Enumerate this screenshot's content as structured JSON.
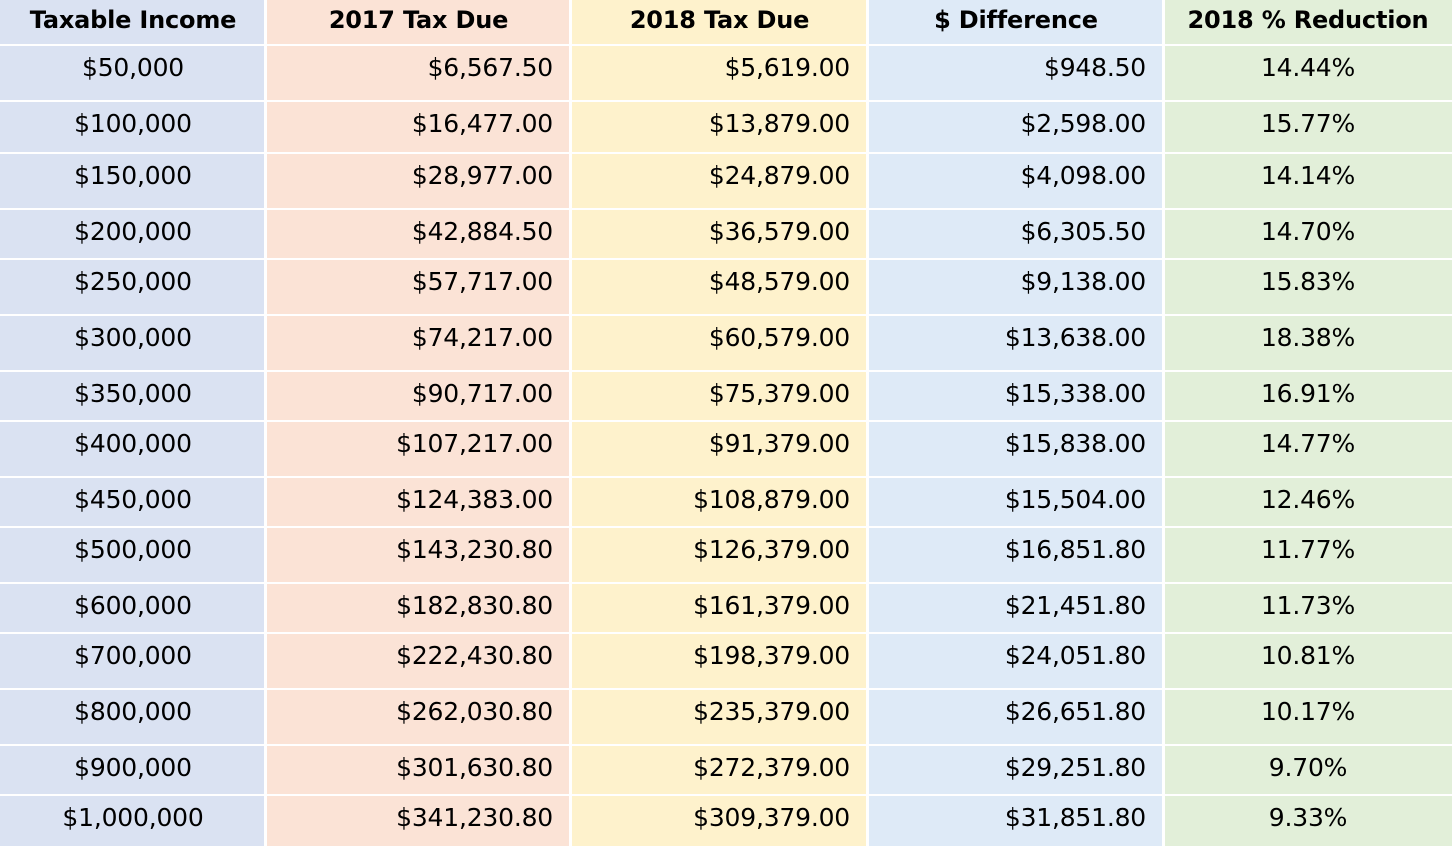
{
  "chart_data": {
    "type": "table",
    "columns": [
      {
        "header": "Taxable Income",
        "bg": "#dae2f2",
        "align": "center"
      },
      {
        "header": "2017 Tax Due",
        "bg": "#fbe3d6",
        "align": "right"
      },
      {
        "header": "2018 Tax Due",
        "bg": "#fef2cc",
        "align": "right"
      },
      {
        "header": "$ Difference",
        "bg": "#deeaf7",
        "align": "right"
      },
      {
        "header": "2018 % Reduction",
        "bg": "#e2efd9",
        "align": "center"
      }
    ],
    "rows": [
      [
        "$50,000",
        "$6,567.50",
        "$5,619.00",
        "$948.50",
        "14.44%"
      ],
      [
        "$100,000",
        "$16,477.00",
        "$13,879.00",
        "$2,598.00",
        "15.77%"
      ],
      [
        "$150,000",
        "$28,977.00",
        "$24,879.00",
        "$4,098.00",
        "14.14%"
      ],
      [
        "$200,000",
        "$42,884.50",
        "$36,579.00",
        "$6,305.50",
        "14.70%"
      ],
      [
        "$250,000",
        "$57,717.00",
        "$48,579.00",
        "$9,138.00",
        "15.83%"
      ],
      [
        "$300,000",
        "$74,217.00",
        "$60,579.00",
        "$13,638.00",
        "18.38%"
      ],
      [
        "$350,000",
        "$90,717.00",
        "$75,379.00",
        "$15,338.00",
        "16.91%"
      ],
      [
        "$400,000",
        "$107,217.00",
        "$91,379.00",
        "$15,838.00",
        "14.77%"
      ],
      [
        "$450,000",
        "$124,383.00",
        "$108,879.00",
        "$15,504.00",
        "12.46%"
      ],
      [
        "$500,000",
        "$143,230.80",
        "$126,379.00",
        "$16,851.80",
        "11.77%"
      ],
      [
        "$600,000",
        "$182,830.80",
        "$161,379.00",
        "$21,451.80",
        "11.73%"
      ],
      [
        "$700,000",
        "$222,430.80",
        "$198,379.00",
        "$24,051.80",
        "10.81%"
      ],
      [
        "$800,000",
        "$262,030.80",
        "$235,379.00",
        "$26,651.80",
        "10.17%"
      ],
      [
        "$900,000",
        "$301,630.80",
        "$272,379.00",
        "$29,251.80",
        "9.70%"
      ],
      [
        "$1,000,000",
        "$341,230.80",
        "$309,379.00",
        "$31,851.80",
        "9.33%"
      ]
    ]
  }
}
